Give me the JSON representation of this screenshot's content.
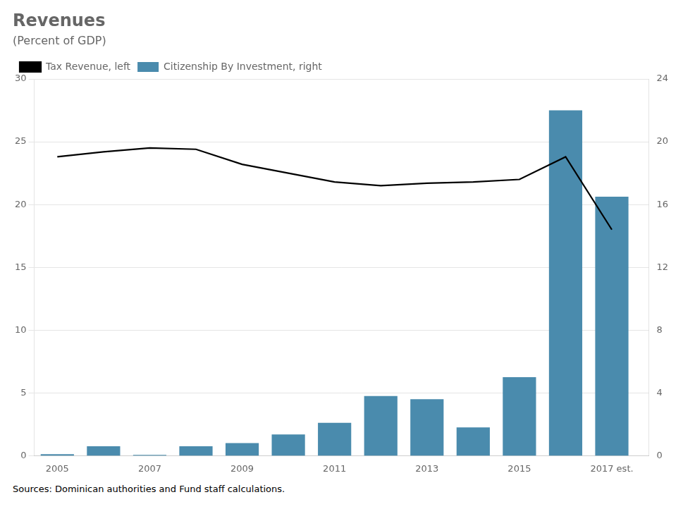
{
  "chart_data": {
    "type": "bar",
    "title": "Revenues",
    "subtitle": "(Percent of GDP)",
    "source": "Sources: Dominican authorities and Fund staff calculations.",
    "x": [
      2005,
      2006,
      2007,
      2008,
      2009,
      2010,
      2011,
      2012,
      2013,
      2014,
      2015,
      2016,
      2017
    ],
    "series": [
      {
        "name": "Citizenship By Investment, right",
        "type": "bar",
        "color": "#4A8BAD",
        "axis": "y2",
        "values": [
          0.1,
          0.6,
          0.05,
          0.6,
          0.8,
          1.35,
          2.1,
          3.8,
          3.6,
          1.8,
          5.0,
          22.0,
          16.5
        ]
      },
      {
        "name": "Tax Revenue, left",
        "type": "line",
        "color": "#000000",
        "axis": "y",
        "values": [
          23.8,
          24.2,
          24.5,
          24.4,
          23.2,
          22.5,
          21.8,
          21.5,
          21.7,
          21.8,
          22.0,
          23.8,
          18.0
        ]
      }
    ],
    "xlim": [
      2004.5,
      2017.8
    ],
    "xticks": [
      2005,
      2007,
      2009,
      2011,
      2013,
      2015,
      {
        "value": 2017,
        "label": "2017 est."
      }
    ],
    "ylim": [
      0,
      30
    ],
    "yticks": [
      0,
      5,
      10,
      15,
      20,
      25,
      30
    ],
    "y2lim": [
      0,
      24
    ],
    "y2ticks": [
      0,
      4,
      8,
      12,
      16,
      20,
      24
    ],
    "grid": true,
    "legend": "upper left"
  }
}
